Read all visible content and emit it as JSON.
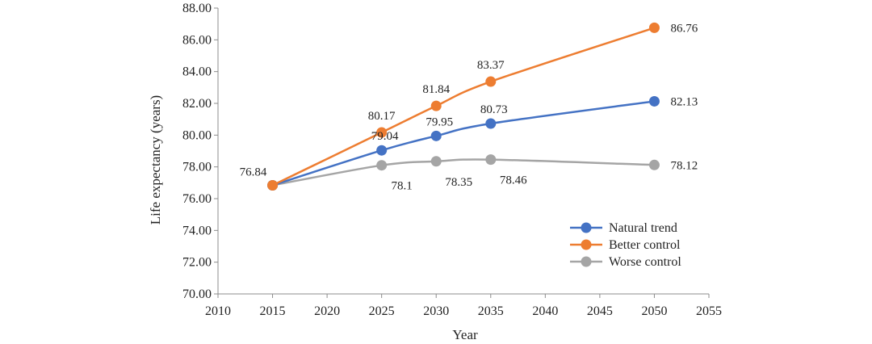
{
  "chart_data": {
    "type": "line",
    "title": "",
    "xlabel": "Year",
    "ylabel": "Life expectancy (years)",
    "xlim": [
      2010,
      2055
    ],
    "ylim": [
      70,
      88
    ],
    "x_ticks": [
      "2010",
      "2015",
      "2020",
      "2025",
      "2030",
      "2035",
      "2040",
      "2045",
      "2050",
      "2055"
    ],
    "y_ticks": [
      "70.00",
      "72.00",
      "74.00",
      "76.00",
      "78.00",
      "80.00",
      "82.00",
      "84.00",
      "86.00",
      "88.00"
    ],
    "grid": false,
    "legend_position": "right",
    "series": [
      {
        "name": "Natural trend",
        "color": "#4472C4",
        "x": [
          2015,
          2025,
          2030,
          2035,
          2050
        ],
        "values": [
          76.84,
          79.04,
          79.95,
          80.73,
          82.13
        ],
        "labels": [
          "",
          "79.04",
          "79.95",
          "80.73",
          "82.13"
        ]
      },
      {
        "name": "Better control",
        "color": "#ED7D31",
        "x": [
          2015,
          2025,
          2030,
          2035,
          2050
        ],
        "values": [
          76.84,
          80.17,
          81.84,
          83.37,
          86.76
        ],
        "labels": [
          "76.84",
          "80.17",
          "81.84",
          "83.37",
          "86.76"
        ]
      },
      {
        "name": "Worse control",
        "color": "#A5A5A5",
        "x": [
          2015,
          2025,
          2030,
          2035,
          2050
        ],
        "values": [
          76.84,
          78.1,
          78.35,
          78.46,
          78.12
        ],
        "labels": [
          "",
          "78.1",
          "78.35",
          "78.46",
          "78.12"
        ]
      }
    ]
  }
}
